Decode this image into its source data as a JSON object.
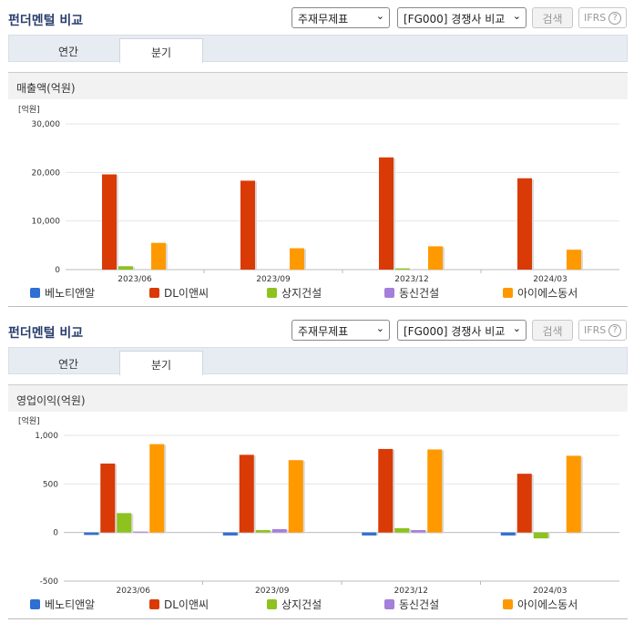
{
  "panels": [
    {
      "title": "펀더멘털 비교",
      "select1": "주재무제표",
      "select2": "[FG000] 경쟁사 비교",
      "search_label": "검색",
      "ifrs_label": "IFRS",
      "help_icon": "?",
      "tabs": [
        {
          "label": "연간"
        },
        {
          "label": "분기"
        }
      ],
      "active_tab": 1,
      "section_title": "매출액(억원)",
      "unit_label": "[억원]"
    },
    {
      "title": "펀더멘털 비교",
      "select1": "주재무제표",
      "select2": "[FG000] 경쟁사 비교",
      "search_label": "검색",
      "ifrs_label": "IFRS",
      "help_icon": "?",
      "tabs": [
        {
          "label": "연간"
        },
        {
          "label": "분기"
        }
      ],
      "active_tab": 1,
      "section_title": "영업이익(억원)",
      "unit_label": "[억원]"
    }
  ],
  "legend": [
    "베노티앤알",
    "DL이앤씨",
    "상지건설",
    "동신건설",
    "아이에스동서"
  ],
  "colors": [
    "#2f6fd3",
    "#d93a06",
    "#8dc21f",
    "#a57fd9",
    "#ff9900"
  ],
  "chart_data": [
    {
      "type": "bar",
      "ylabel": "[억원]",
      "categories": [
        "2023/06",
        "2023/09",
        "2023/12",
        "2024/03"
      ],
      "ylim": [
        0,
        30000
      ],
      "yticks": [
        0,
        10000,
        20000,
        30000
      ],
      "ytick_labels": [
        "0",
        "10,000",
        "20,000",
        "30,000"
      ],
      "series": [
        {
          "name": "베노티앤알",
          "values": [
            null,
            null,
            null,
            null
          ]
        },
        {
          "name": "DL이앤씨",
          "values": [
            19600,
            18300,
            23100,
            18800
          ]
        },
        {
          "name": "상지건설",
          "values": [
            700,
            null,
            250,
            null
          ]
        },
        {
          "name": "동신건설",
          "values": [
            null,
            null,
            null,
            null
          ]
        },
        {
          "name": "아이에스동서",
          "values": [
            5500,
            4400,
            4800,
            4100
          ]
        }
      ]
    },
    {
      "type": "bar",
      "ylabel": "[억원]",
      "categories": [
        "2023/06",
        "2023/09",
        "2023/12",
        "2024/03"
      ],
      "ylim": [
        -500,
        1000
      ],
      "yticks": [
        -500,
        0,
        500,
        1000
      ],
      "ytick_labels": [
        "-500",
        "0",
        "500",
        "1,000"
      ],
      "series": [
        {
          "name": "베노티앤알",
          "values": [
            -25,
            -30,
            -30,
            -30
          ]
        },
        {
          "name": "DL이앤씨",
          "values": [
            710,
            800,
            860,
            605
          ]
        },
        {
          "name": "상지건설",
          "values": [
            200,
            25,
            45,
            -60
          ]
        },
        {
          "name": "동신건설",
          "values": [
            10,
            35,
            25,
            null
          ]
        },
        {
          "name": "아이에스동서",
          "values": [
            910,
            745,
            855,
            790
          ]
        }
      ]
    }
  ]
}
